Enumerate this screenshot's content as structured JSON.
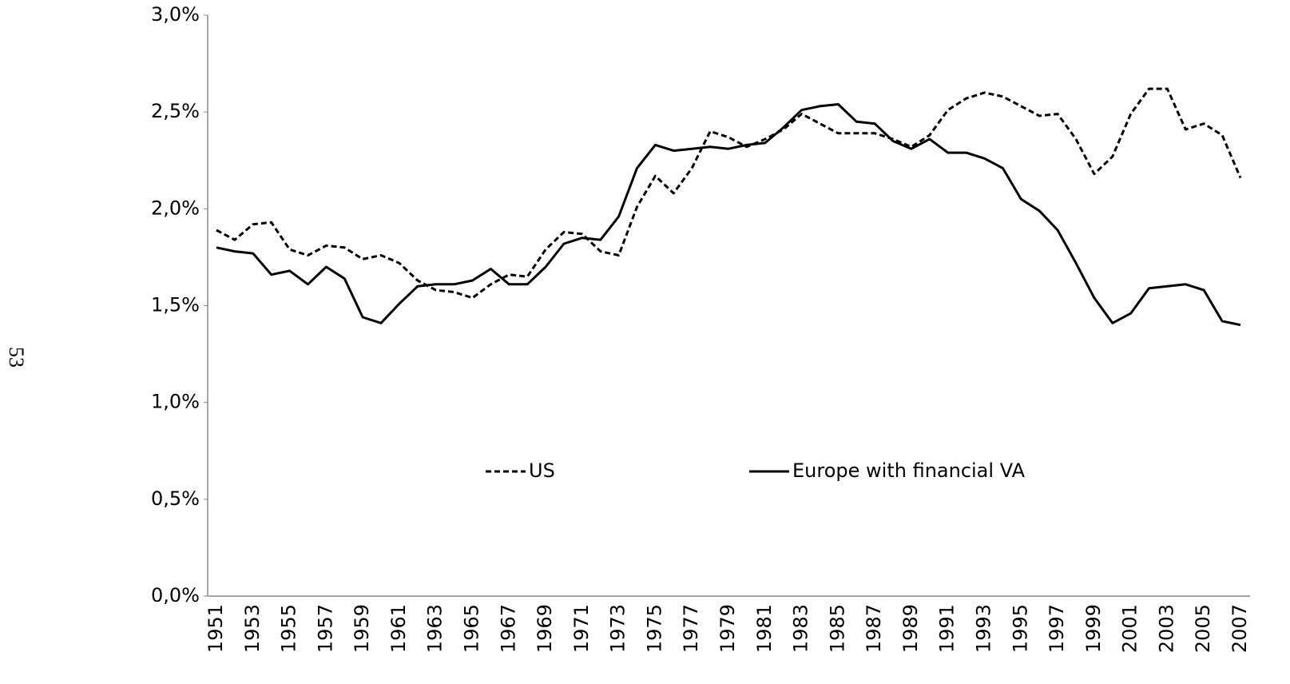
{
  "page_number": "53",
  "chart_data": {
    "type": "line",
    "categories": [
      "1951",
      null,
      "1953",
      null,
      "1955",
      null,
      "1957",
      null,
      "1959",
      null,
      "1961",
      null,
      "1963",
      null,
      "1965",
      null,
      "1967",
      null,
      "1969",
      null,
      "1971",
      null,
      "1973",
      null,
      "1975",
      null,
      "1977",
      null,
      "1979",
      null,
      "1981",
      null,
      "1983",
      null,
      "1985",
      null,
      "1987",
      null,
      "1989",
      null,
      "1991",
      null,
      "1993",
      null,
      "1995",
      null,
      "1997",
      null,
      "1999",
      null,
      "2001",
      null,
      "2003",
      null,
      "2005",
      null,
      "2007"
    ],
    "series": [
      {
        "name": "US",
        "color": "#000000",
        "style": "dashed",
        "values": [
          1.89,
          1.84,
          1.92,
          1.93,
          1.79,
          1.76,
          1.81,
          1.8,
          1.74,
          1.76,
          1.72,
          1.63,
          1.58,
          1.57,
          1.54,
          1.61,
          1.66,
          1.65,
          1.79,
          1.88,
          1.87,
          1.78,
          1.76,
          2.01,
          2.17,
          2.08,
          2.21,
          2.4,
          2.37,
          2.32,
          2.36,
          2.41,
          2.49,
          2.44,
          2.39,
          2.39,
          2.39,
          2.36,
          2.32,
          2.38,
          2.51,
          2.57,
          2.6,
          2.58,
          2.53,
          2.48,
          2.49,
          2.36,
          2.18,
          2.27,
          2.49,
          2.62,
          2.62,
          2.41,
          2.44,
          2.38,
          2.16
        ]
      },
      {
        "name": "Europe with financial VA",
        "color": "#000000",
        "style": "solid",
        "values": [
          1.8,
          1.78,
          1.77,
          1.66,
          1.68,
          1.61,
          1.7,
          1.64,
          1.44,
          1.41,
          1.51,
          1.6,
          1.61,
          1.61,
          1.63,
          1.69,
          1.61,
          1.61,
          1.7,
          1.82,
          1.85,
          1.84,
          1.96,
          2.21,
          2.33,
          2.3,
          2.31,
          2.32,
          2.31,
          2.33,
          2.34,
          2.42,
          2.51,
          2.53,
          2.54,
          2.45,
          2.44,
          2.35,
          2.31,
          2.36,
          2.29,
          2.29,
          2.26,
          2.21,
          2.05,
          1.99,
          1.89,
          1.72,
          1.54,
          1.41,
          1.46,
          1.59,
          1.6,
          1.61,
          1.58,
          1.42,
          1.4
        ]
      }
    ],
    "ylim": [
      0,
      3
    ],
    "yticks": [
      {
        "value": 0,
        "label": "0,0%"
      },
      {
        "value": 0.5,
        "label": "0,5%"
      },
      {
        "value": 1,
        "label": "1,0%"
      },
      {
        "value": 1.5,
        "label": "1,5%"
      },
      {
        "value": 2,
        "label": "2,0%"
      },
      {
        "value": 2.5,
        "label": "2,5%"
      },
      {
        "value": 3,
        "label": "3,0%"
      }
    ],
    "grid": false,
    "legend": "center"
  }
}
